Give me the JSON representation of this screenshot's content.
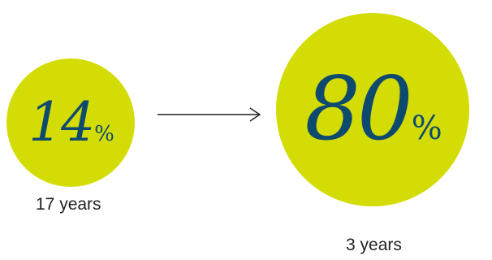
{
  "colors": {
    "circle_fill": "#d4dc05",
    "value_text": "#0e4a6e",
    "caption_text": "#231f20",
    "arrow": "#231f20"
  },
  "before": {
    "value": "14",
    "unit": "%",
    "caption": "17 years"
  },
  "after": {
    "value": "80",
    "unit": "%",
    "caption": "3 years"
  },
  "connector": {
    "icon": "arrow-right-icon"
  }
}
